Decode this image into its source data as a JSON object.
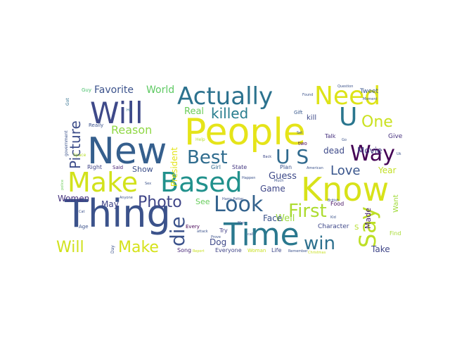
{
  "words": [
    {
      "text": "Thing",
      "color": "#3b528b"
    },
    {
      "text": "People",
      "color": "#e5e419"
    },
    {
      "text": "New",
      "color": "#355f8d"
    },
    {
      "text": "Time",
      "color": "#2a788e"
    },
    {
      "text": "Know",
      "color": "#d8e219"
    },
    {
      "text": "Based",
      "color": "#21918c"
    },
    {
      "text": "Make",
      "color": "#d2e21b"
    },
    {
      "text": "Will",
      "color": "#3e4989"
    },
    {
      "text": "Actually",
      "color": "#2c728e"
    },
    {
      "text": "Need",
      "color": "#dde318"
    },
    {
      "text": "U",
      "color": "#2a768e"
    },
    {
      "text": "Way",
      "color": "#440154"
    },
    {
      "text": "Say",
      "color": "#bddf26"
    },
    {
      "text": "Look",
      "color": "#33628d"
    },
    {
      "text": "U S",
      "color": "#306a8e"
    },
    {
      "text": "Best",
      "color": "#2f6c8e"
    },
    {
      "text": "First",
      "color": "#addc30"
    },
    {
      "text": "Photo",
      "color": "#404688"
    },
    {
      "text": "die",
      "color": "#3b528b"
    },
    {
      "text": "win",
      "color": "#2d708e"
    },
    {
      "text": "Picture",
      "color": "#3d4d8a"
    },
    {
      "text": "killed",
      "color": "#287d8e"
    },
    {
      "text": "One",
      "color": "#cae11f"
    },
    {
      "text": "Will",
      "color": "#d0e11c"
    },
    {
      "text": "Make",
      "color": "#d5e21a"
    },
    {
      "text": "Love",
      "color": "#39558c"
    },
    {
      "text": "Reason",
      "color": "#8fd744"
    },
    {
      "text": "President",
      "color": "#e3e418"
    },
    {
      "text": "Favorite",
      "color": "#3b528b"
    },
    {
      "text": "World",
      "color": "#5ec962"
    },
    {
      "text": "Real",
      "color": "#6ccd5a"
    },
    {
      "text": "Well",
      "color": "#9bd93c"
    },
    {
      "text": "Guess",
      "color": "#3e4a89"
    },
    {
      "text": "Face",
      "color": "#3b528b"
    },
    {
      "text": "Dog",
      "color": "#3e4989"
    },
    {
      "text": "Game",
      "color": "#3f4788"
    },
    {
      "text": "Women",
      "color": "#46337e"
    },
    {
      "text": "Movie",
      "color": "#433e85"
    },
    {
      "text": "Show",
      "color": "#3c4f8a"
    },
    {
      "text": "May",
      "color": "#404588"
    },
    {
      "text": "See",
      "color": "#67cc5c"
    },
    {
      "text": "Year",
      "color": "#c2df23"
    },
    {
      "text": "Take",
      "color": "#404688"
    },
    {
      "text": "Made",
      "color": "#481f70"
    },
    {
      "text": "Want",
      "color": "#a0da39"
    },
    {
      "text": "Character",
      "color": "#3f4889"
    },
    {
      "text": "dead",
      "color": "#3e4a89"
    },
    {
      "text": "kill",
      "color": "#3e4a89"
    },
    {
      "text": "Give",
      "color": "#46307e"
    },
    {
      "text": "Tweet",
      "color": "#39558c"
    },
    {
      "text": "Right",
      "color": "#404688"
    },
    {
      "text": "Said",
      "color": "#482475"
    },
    {
      "text": "Plan",
      "color": "#3b528b"
    },
    {
      "text": "State",
      "color": "#453882"
    },
    {
      "text": "Girl",
      "color": "#31688e"
    },
    {
      "text": "Every",
      "color": "#440154"
    },
    {
      "text": "Song",
      "color": "#482878"
    },
    {
      "text": "Everyone",
      "color": "#404588"
    },
    {
      "text": "Woman",
      "color": "#c8e020"
    },
    {
      "text": "Life",
      "color": "#3e4989"
    },
    {
      "text": "Food",
      "color": "#471365"
    },
    {
      "text": "Try",
      "color": "#423f85"
    },
    {
      "text": "Talk",
      "color": "#46307e"
    },
    {
      "text": "two",
      "color": "#440154"
    },
    {
      "text": "Really",
      "color": "#3b528b"
    },
    {
      "text": "Gift",
      "color": "#38588c"
    },
    {
      "text": "government",
      "color": "#3b528b"
    },
    {
      "text": "Harry Potter",
      "color": "#3b528b"
    },
    {
      "text": "Question",
      "color": "#3b528b"
    },
    {
      "text": "Find",
      "color": "#a8db34"
    },
    {
      "text": "S",
      "color": "#b5de2b"
    },
    {
      "text": "Guy",
      "color": "#4ac16d"
    },
    {
      "text": "Got",
      "color": "#2e6e8e"
    },
    {
      "text": "Hit",
      "color": "#2f6c8e"
    },
    {
      "text": "Help",
      "color": "#b5de2b"
    },
    {
      "text": "Happen",
      "color": "#3b528b"
    },
    {
      "text": "Back",
      "color": "#3e4989"
    },
    {
      "text": "Set",
      "color": "#3b528b"
    },
    {
      "text": "Go",
      "color": "#3b528b"
    },
    {
      "text": "Moment",
      "color": "#3b528b"
    },
    {
      "text": "American",
      "color": "#3b528b"
    },
    {
      "text": "Sex",
      "color": "#3b528b"
    },
    {
      "text": "Anyone",
      "color": "#3b528b"
    },
    {
      "text": "Much",
      "color": "#3b528b"
    },
    {
      "text": "Man",
      "color": "#3b528b"
    },
    {
      "text": "attack",
      "color": "#3b528b"
    },
    {
      "text": "Prove",
      "color": "#3b528b"
    },
    {
      "text": "call",
      "color": "#3b528b"
    },
    {
      "text": "British",
      "color": "#3b528b"
    },
    {
      "text": "Kid",
      "color": "#3b528b"
    },
    {
      "text": "Remember",
      "color": "#3b528b"
    },
    {
      "text": "Christmas",
      "color": "#c8e020"
    },
    {
      "text": "Cat",
      "color": "#3b528b"
    },
    {
      "text": "Age",
      "color": "#3b528b"
    },
    {
      "text": "Day",
      "color": "#3b528b"
    },
    {
      "text": "police",
      "color": "#6ccd5a"
    },
    {
      "text": "Report",
      "color": "#c8e020"
    },
    {
      "text": "Found",
      "color": "#3b528b"
    },
    {
      "text": "Uk",
      "color": "#3b528b"
    },
    {
      "text": "Space",
      "color": "#b5de2b"
    }
  ]
}
